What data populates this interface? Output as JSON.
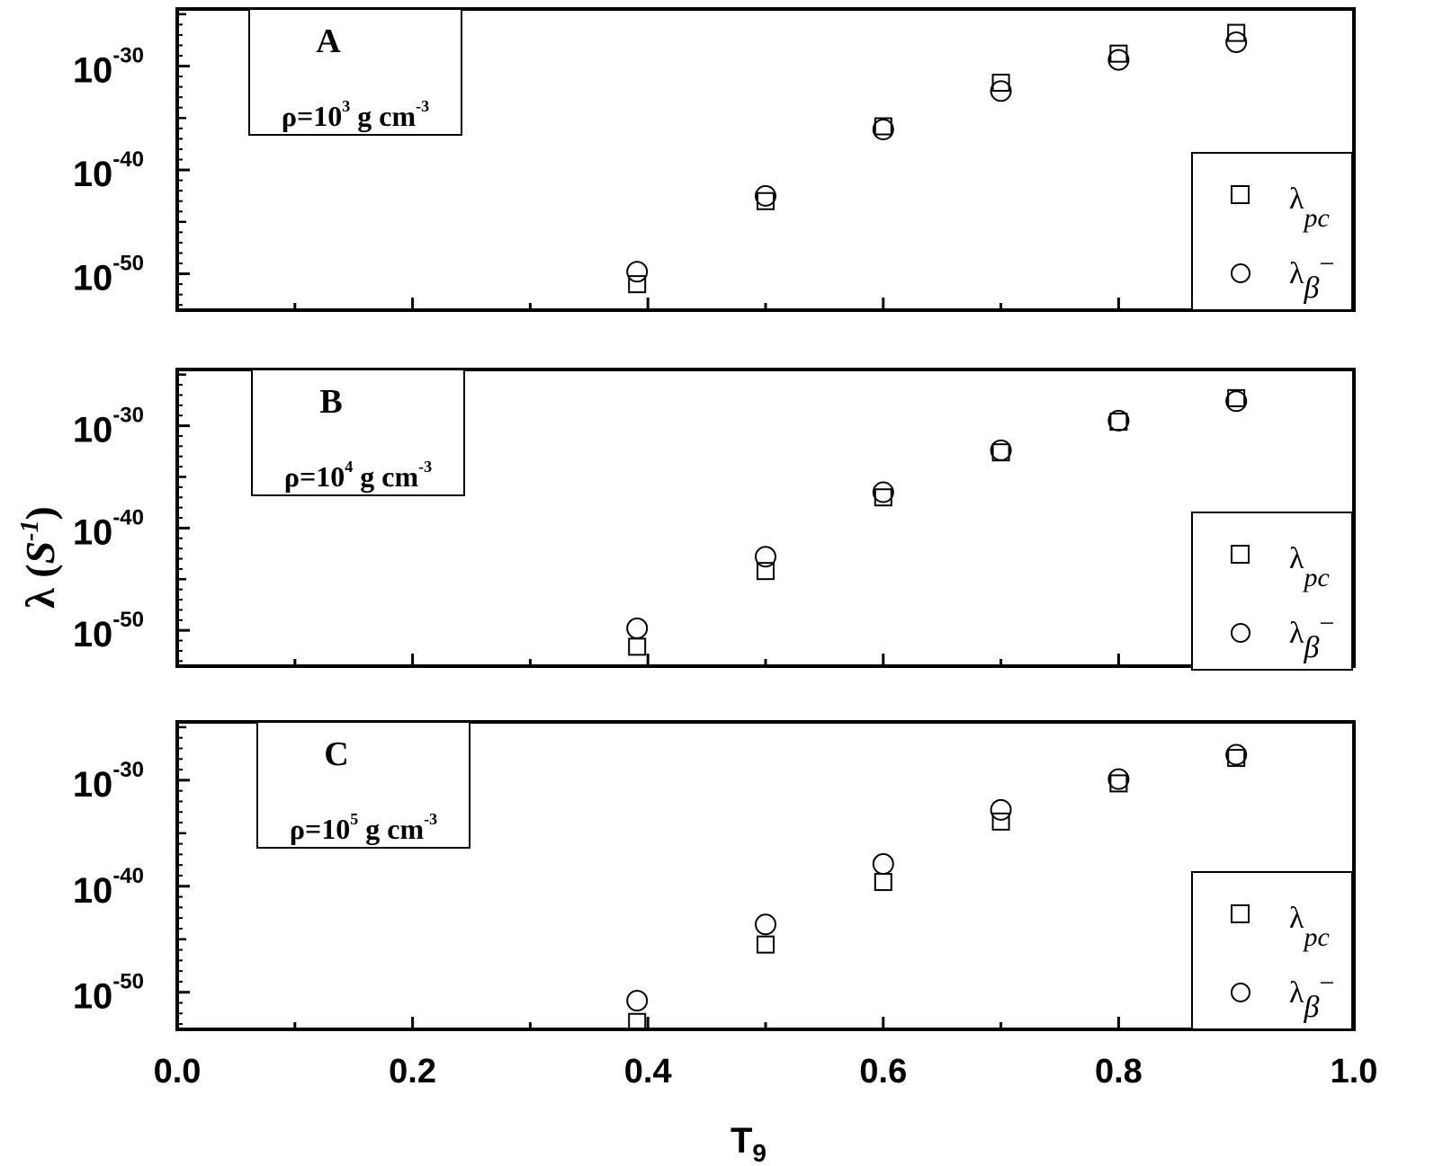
{
  "chart_data": {
    "type": "scatter",
    "xlabel_main": "T",
    "xlabel_sub": "9",
    "ylabel_main": "λ (",
    "ylabel_unit": "S",
    "ylabel_sup": "-1",
    "ylabel_close": ")",
    "xlim": [
      0.0,
      1.0
    ],
    "x_ticks": [
      "0.0",
      "0.2",
      "0.4",
      "0.6",
      "0.8",
      "1.0"
    ],
    "y_log_scale": true,
    "ylim_log10": [
      -53.5,
      -24.5
    ],
    "y_tick_base": "10",
    "y_ticks": [
      "-30",
      "-40",
      "-50"
    ],
    "legend_placement": "bottom-right",
    "legend": {
      "pc_symbol": "λ",
      "pc_sub": "pc",
      "beta_symbol": "λ",
      "beta_sub": "β",
      "beta_sup": "−"
    },
    "panels": [
      {
        "label": "A",
        "rho_prefix": "ρ=10",
        "rho_exp": "3",
        "rho_suffix": " g cm",
        "rho_unit_exp": "-3",
        "series": [
          {
            "name": "λpc",
            "marker": "square",
            "x": [
              0.4,
              0.5,
              0.6,
              0.7,
              0.8,
              0.9
            ],
            "log10_y": [
              -51.0,
              -43.0,
              -35.8,
              -31.6,
              -28.8,
              -26.8
            ]
          },
          {
            "name": "λβ−",
            "marker": "circle",
            "x": [
              0.4,
              0.5,
              0.6,
              0.7,
              0.8,
              0.9
            ],
            "log10_y": [
              -49.8,
              -42.5,
              -36.1,
              -32.4,
              -29.4,
              -27.7
            ]
          }
        ]
      },
      {
        "label": "B",
        "rho_prefix": "ρ=10",
        "rho_exp": "4",
        "rho_suffix": " g cm",
        "rho_unit_exp": "-3",
        "series": [
          {
            "name": "λpc",
            "marker": "square",
            "x": [
              0.4,
              0.5,
              0.6,
              0.7,
              0.8,
              0.9
            ],
            "log10_y": [
              -51.6,
              -44.2,
              -37.0,
              -32.6,
              -29.6,
              -27.3
            ]
          },
          {
            "name": "λβ−",
            "marker": "circle",
            "x": [
              0.4,
              0.5,
              0.6,
              0.7,
              0.8,
              0.9
            ],
            "log10_y": [
              -49.8,
              -42.8,
              -36.5,
              -32.4,
              -29.5,
              -27.6
            ]
          }
        ]
      },
      {
        "label": "C",
        "rho_prefix": "ρ=10",
        "rho_exp": "5",
        "rho_suffix": " g cm",
        "rho_unit_exp": "-3",
        "series": [
          {
            "name": "λpc",
            "marker": "square",
            "x": [
              0.4,
              0.5,
              0.6,
              0.7,
              0.8,
              0.9
            ],
            "log10_y": [
              -52.8,
              -45.5,
              -39.6,
              -33.9,
              -30.3,
              -27.9
            ]
          },
          {
            "name": "λβ−",
            "marker": "circle",
            "x": [
              0.4,
              0.5,
              0.6,
              0.7,
              0.8,
              0.9
            ],
            "log10_y": [
              -50.8,
              -43.6,
              -37.9,
              -32.8,
              -29.9,
              -27.6
            ]
          }
        ]
      }
    ]
  }
}
